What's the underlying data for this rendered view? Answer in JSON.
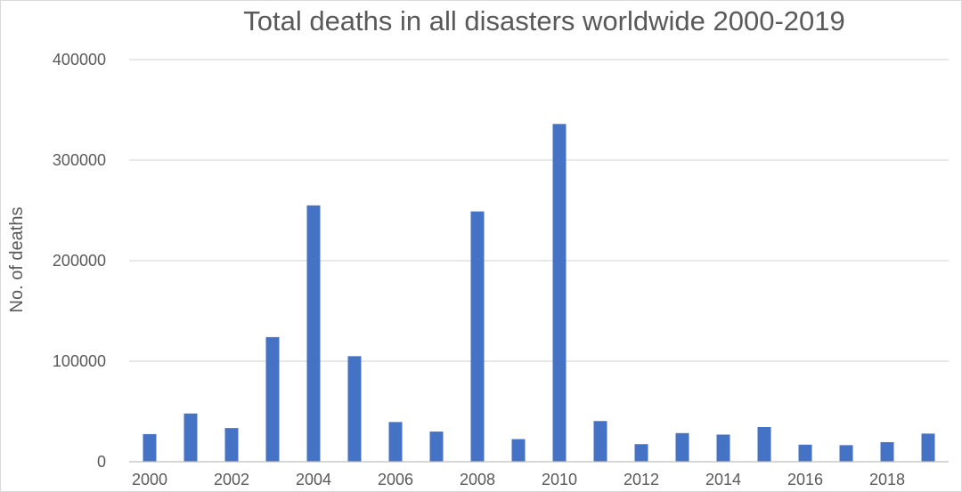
{
  "chart_data": {
    "type": "bar",
    "title": "Total deaths in all disasters worldwide 2000-2019",
    "xlabel": "",
    "ylabel": "No. of deaths",
    "categories": [
      "2000",
      "2001",
      "2002",
      "2003",
      "2004",
      "2005",
      "2006",
      "2007",
      "2008",
      "2009",
      "2010",
      "2011",
      "2012",
      "2013",
      "2014",
      "2015",
      "2016",
      "2017",
      "2018",
      "2019"
    ],
    "x_tick_labels": [
      "2000",
      "",
      "2002",
      "",
      "2004",
      "",
      "2006",
      "",
      "2008",
      "",
      "2010",
      "",
      "2012",
      "",
      "2014",
      "",
      "2016",
      "",
      "2018",
      ""
    ],
    "series": [
      {
        "color": "#4472c4",
        "values": [
          27500,
          48000,
          33500,
          124000,
          255000,
          105000,
          39500,
          30000,
          249000,
          22500,
          336000,
          40500,
          17500,
          28500,
          27000,
          34500,
          17000,
          16500,
          19500,
          28000
        ]
      }
    ],
    "ylim": [
      0,
      400000
    ],
    "yticks": [
      0,
      100000,
      200000,
      300000,
      400000
    ],
    "y_tick_labels": [
      "0",
      "100000",
      "200000",
      "300000",
      "400000"
    ],
    "grid": true,
    "legend": "none"
  }
}
